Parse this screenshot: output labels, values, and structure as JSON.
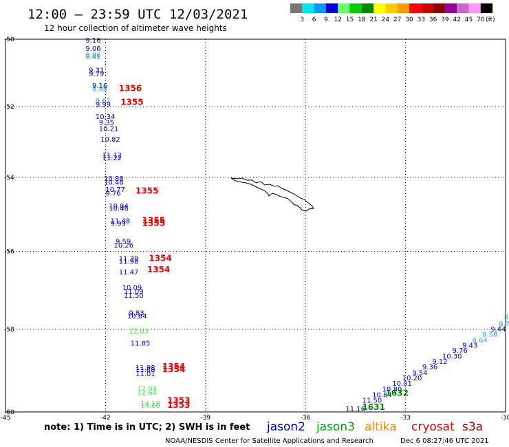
{
  "header": {
    "title": "12:00 – 23:59 UTC 12/03/2021",
    "subtitle": "12 hour collection of altimeter wave heights"
  },
  "color_scale": {
    "labels": [
      "3",
      "6",
      "9",
      "12",
      "15",
      "18",
      "21",
      "24",
      "27",
      "30",
      "33",
      "36",
      "39",
      "42",
      "45",
      "70"
    ],
    "unit": "(ft)",
    "colors": [
      "#777777",
      "#00e5ee",
      "#0099ff",
      "#0000dd",
      "#66ff66",
      "#00cc00",
      "#008800",
      "#ffff00",
      "#ffcc00",
      "#ff9900",
      "#ff0000",
      "#cc0000",
      "#880000",
      "#990099",
      "#cc66cc",
      "#ff99ff",
      "#000000"
    ]
  },
  "axes": {
    "lon_labels": [
      "-45",
      "-42",
      "-39",
      "-36",
      "-33",
      "-30"
    ],
    "lat_labels": [
      "-50",
      "-52",
      "-54",
      "-56",
      "-58",
      "-60"
    ]
  },
  "colors": {
    "jason2": "#0000cc",
    "jason3": "#00aa00",
    "altika": "#ff8800",
    "cryosat": "#ee0000",
    "s3a": "#aa0000",
    "light_green": "#55dd55",
    "cyan": "#22aadd",
    "time": "#ee0000",
    "time_dark": "#008800"
  },
  "wave_labels": [
    {
      "text": "9.16",
      "lon": -42.6,
      "lat": -50.1,
      "c": "jason2"
    },
    {
      "text": "9.06",
      "lon": -42.6,
      "lat": -50.35,
      "c": "jason2"
    },
    {
      "text": "8.86",
      "lon": -42.6,
      "lat": -50.55,
      "c": "cyan"
    },
    {
      "text": "8.41",
      "lon": -42.6,
      "lat": -50.6,
      "c": "cyan"
    },
    {
      "text": "9.31",
      "lon": -42.5,
      "lat": -51.0,
      "c": "jason2"
    },
    {
      "text": "9.79",
      "lon": -42.5,
      "lat": -51.1,
      "c": "jason2"
    },
    {
      "text": "9.16",
      "lon": -42.4,
      "lat": -51.45,
      "c": "jason2"
    },
    {
      "text": "8.88",
      "lon": -42.4,
      "lat": -51.55,
      "c": "cyan"
    },
    {
      "text": "9.61",
      "lon": -42.3,
      "lat": -51.9,
      "c": "cyan"
    },
    {
      "text": "9.99",
      "lon": -42.3,
      "lat": -52.0,
      "c": "jason2"
    },
    {
      "text": "10.34",
      "lon": -42.3,
      "lat": -52.35,
      "c": "jason2"
    },
    {
      "text": "9.35",
      "lon": -42.2,
      "lat": -52.52,
      "c": "jason2"
    },
    {
      "text": "10.21",
      "lon": -42.2,
      "lat": -52.7,
      "c": "jason2"
    },
    {
      "text": "10.82",
      "lon": -42.15,
      "lat": -53.0,
      "c": "jason2"
    },
    {
      "text": "11.12",
      "lon": -42.1,
      "lat": -53.45,
      "c": "jason2"
    },
    {
      "text": "11.22",
      "lon": -42.1,
      "lat": -53.52,
      "c": "jason2"
    },
    {
      "text": "10.88",
      "lon": -42.05,
      "lat": -54.1,
      "c": "jason2"
    },
    {
      "text": "10.48",
      "lon": -42.05,
      "lat": -54.2,
      "c": "jason2"
    },
    {
      "text": "10.77",
      "lon": -42.0,
      "lat": -54.4,
      "c": "jason2"
    },
    {
      "text": "9.76",
      "lon": -42.0,
      "lat": -54.5,
      "c": "jason2"
    },
    {
      "text": "10.84",
      "lon": -41.9,
      "lat": -54.85,
      "c": "jason2"
    },
    {
      "text": "10.46",
      "lon": -41.9,
      "lat": -54.92,
      "c": "jason2"
    },
    {
      "text": "11.48",
      "lon": -41.85,
      "lat": -55.25,
      "c": "jason2"
    },
    {
      "text": "9.99",
      "lon": -41.85,
      "lat": -55.32,
      "c": "jason2"
    },
    {
      "text": "9.59",
      "lon": -41.7,
      "lat": -55.8,
      "c": "jason2"
    },
    {
      "text": "10.26",
      "lon": -41.75,
      "lat": -55.9,
      "c": "jason2"
    },
    {
      "text": "11.39",
      "lon": -41.6,
      "lat": -56.25,
      "c": "jason2"
    },
    {
      "text": "11.98",
      "lon": -41.6,
      "lat": -56.32,
      "c": "jason2"
    },
    {
      "text": "11.47",
      "lon": -41.6,
      "lat": -56.6,
      "c": "jason2"
    },
    {
      "text": "10.09",
      "lon": -41.5,
      "lat": -57.0,
      "c": "jason2"
    },
    {
      "text": "11.09",
      "lon": -41.45,
      "lat": -57.1,
      "c": "jason2"
    },
    {
      "text": "11.50",
      "lon": -41.45,
      "lat": -57.2,
      "c": "jason2"
    },
    {
      "text": "9.83",
      "lon": -41.3,
      "lat": -57.65,
      "c": "jason2"
    },
    {
      "text": "10.84",
      "lon": -41.35,
      "lat": -57.72,
      "c": "jason2"
    },
    {
      "text": "12.03",
      "lon": -41.3,
      "lat": -58.1,
      "c": "light_green"
    },
    {
      "text": "11.85",
      "lon": -41.25,
      "lat": -58.4,
      "c": "jason2"
    },
    {
      "text": "11.98",
      "lon": -41.1,
      "lat": -59.0,
      "c": "jason2"
    },
    {
      "text": "11.88",
      "lon": -41.1,
      "lat": -59.05,
      "c": "jason2"
    },
    {
      "text": "11.01",
      "lon": -41.1,
      "lat": -59.15,
      "c": "jason2"
    },
    {
      "text": "12.04",
      "lon": -41.05,
      "lat": -59.5,
      "c": "light_green"
    },
    {
      "text": "12.64",
      "lon": -41.05,
      "lat": -59.6,
      "c": "light_green"
    },
    {
      "text": "14.18",
      "lon": -40.95,
      "lat": -59.85,
      "c": "light_green"
    },
    {
      "text": "14.66",
      "lon": -40.95,
      "lat": -59.9,
      "c": "light_green"
    },
    {
      "text": "11.16",
      "lon": -34.8,
      "lat": -59.98,
      "c": "jason2"
    },
    {
      "text": "11.50",
      "lon": -34.3,
      "lat": -59.78,
      "c": "jason2"
    },
    {
      "text": "10.84",
      "lon": -34.0,
      "lat": -59.65,
      "c": "jason2"
    },
    {
      "text": "10.80",
      "lon": -33.7,
      "lat": -59.52,
      "c": "jason2"
    },
    {
      "text": "10.01",
      "lon": -33.4,
      "lat": -59.38,
      "c": "jason2"
    },
    {
      "text": "10.20",
      "lon": -33.1,
      "lat": -59.25,
      "c": "jason2"
    },
    {
      "text": "9.54",
      "lon": -32.8,
      "lat": -59.12,
      "c": "jason2"
    },
    {
      "text": "9.36",
      "lon": -32.5,
      "lat": -58.98,
      "c": "jason2"
    },
    {
      "text": "9.12",
      "lon": -32.2,
      "lat": -58.85,
      "c": "jason2"
    },
    {
      "text": "10.30",
      "lon": -31.9,
      "lat": -58.72,
      "c": "jason2"
    },
    {
      "text": "9.76",
      "lon": -31.6,
      "lat": -58.58,
      "c": "jason2"
    },
    {
      "text": "9.43",
      "lon": -31.3,
      "lat": -58.45,
      "c": "jason2"
    },
    {
      "text": "8.64",
      "lon": -31.0,
      "lat": -58.32,
      "c": "cyan"
    },
    {
      "text": "8.58",
      "lon": -30.7,
      "lat": -58.18,
      "c": "cyan"
    },
    {
      "text": "9.44",
      "lon": -30.45,
      "lat": -58.05,
      "c": "jason2"
    },
    {
      "text": "8.73",
      "lon": -30.2,
      "lat": -57.92,
      "c": "cyan"
    },
    {
      "text": "8.",
      "lon": -30.05,
      "lat": -57.75,
      "c": "cyan"
    }
  ],
  "time_labels": [
    {
      "text": "1356",
      "lon": -41.6,
      "lat": -51.55,
      "c": "time"
    },
    {
      "text": "1355",
      "lon": -41.55,
      "lat": -51.95,
      "c": "time"
    },
    {
      "text": "1355",
      "lon": -41.1,
      "lat": -54.45,
      "c": "time"
    },
    {
      "text": "1355",
      "lon": -40.9,
      "lat": -55.25,
      "c": "time"
    },
    {
      "text": "1355",
      "lon": -40.9,
      "lat": -55.32,
      "c": "time"
    },
    {
      "text": "1354",
      "lon": -40.7,
      "lat": -56.25,
      "c": "time"
    },
    {
      "text": "1354",
      "lon": -40.75,
      "lat": -56.55,
      "c": "time"
    },
    {
      "text": "1354",
      "lon": -40.3,
      "lat": -58.98,
      "c": "time"
    },
    {
      "text": "1354",
      "lon": -40.3,
      "lat": -59.05,
      "c": "time"
    },
    {
      "text": "1353",
      "lon": -40.15,
      "lat": -59.8,
      "c": "time"
    },
    {
      "text": "1353",
      "lon": -40.15,
      "lat": -59.9,
      "c": "time"
    },
    {
      "text": "1632",
      "lon": -33.6,
      "lat": -59.62,
      "c": "time_dark"
    },
    {
      "text": "1631",
      "lon": -34.3,
      "lat": -59.95,
      "c": "time_dark"
    }
  ],
  "footer": {
    "note": "note:  1) Time is in UTC;  2) SWH is in feet",
    "satellites": [
      {
        "name": "jason2",
        "c": "jason2"
      },
      {
        "name": "jason3",
        "c": "jason3"
      },
      {
        "name": "altika",
        "c": "altika"
      },
      {
        "name": "cryosat",
        "c": "cryosat"
      },
      {
        "name": "s3a",
        "c": "s3a"
      }
    ],
    "credit": "NOAA/NESDIS Center for Satellite Applications and Research",
    "timestamp": "Dec  6 08:27:46 UTC 2021"
  }
}
